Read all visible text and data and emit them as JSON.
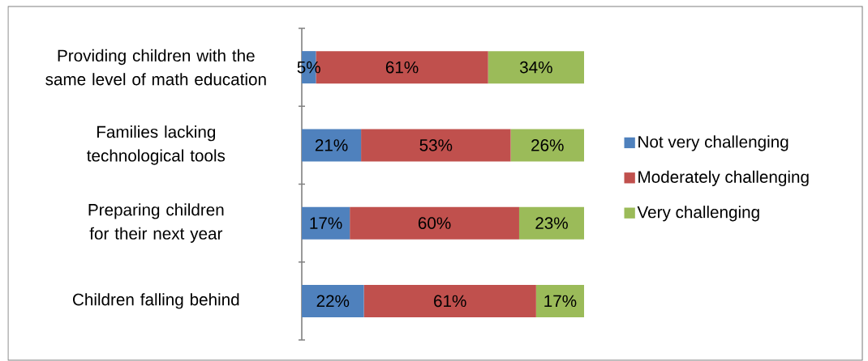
{
  "chart_data": {
    "type": "bar",
    "orientation": "horizontal",
    "stacked": true,
    "categories": [
      "Providing children with the same level of math education",
      "Families lacking technological tools",
      "Preparing children for their next year",
      "Children falling behind"
    ],
    "xlim": [
      0,
      100
    ],
    "series": [
      {
        "name": "Not very challenging",
        "color": "#4f81bd",
        "values": [
          5,
          21,
          17,
          22
        ],
        "value_labels": [
          "5%",
          "21%",
          "17%",
          "22%"
        ]
      },
      {
        "name": "Moderately challenging",
        "color": "#c0504d",
        "values": [
          61,
          53,
          60,
          61
        ],
        "value_labels": [
          "61%",
          "53%",
          "60%",
          "61%"
        ]
      },
      {
        "name": "Very challenging",
        "color": "#9bbb59",
        "values": [
          34,
          26,
          23,
          17
        ],
        "value_labels": [
          "34%",
          "26%",
          "23%",
          "17%"
        ]
      }
    ],
    "legend": "right",
    "tick_labels": "y",
    "grid": false
  }
}
